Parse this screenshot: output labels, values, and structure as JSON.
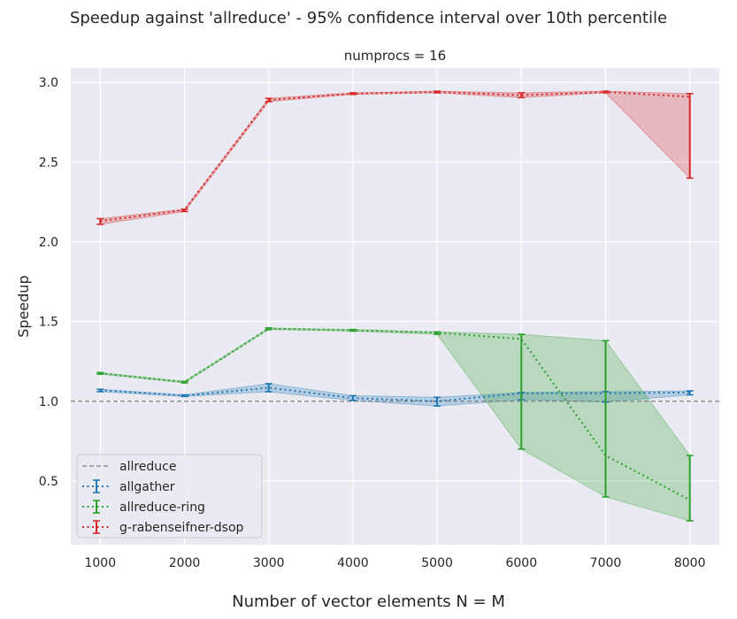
{
  "figure_title": "Speedup against 'allreduce' - 95% confidence interval over 10th percentile",
  "chart_data": {
    "type": "line",
    "title": "numprocs = 16",
    "xlabel": "Number of vector elements N = M",
    "ylabel": "Speedup",
    "x": [
      1000,
      2000,
      3000,
      4000,
      5000,
      6000,
      7000,
      8000
    ],
    "xlim": [
      650,
      8350
    ],
    "ylim": [
      0.1,
      3.09
    ],
    "xticks": [
      "1000",
      "2000",
      "3000",
      "4000",
      "5000",
      "6000",
      "7000",
      "8000"
    ],
    "yticks": [
      "0.5",
      "1.0",
      "1.5",
      "2.0",
      "2.5",
      "3.0"
    ],
    "ytick_values": [
      0.5,
      1.0,
      1.5,
      2.0,
      2.5,
      3.0
    ],
    "grid": true,
    "legend_position": "lower-left",
    "baseline": {
      "name": "allreduce",
      "value": 1.0,
      "color": "#7f7f7f"
    },
    "series": [
      {
        "name": "allgather",
        "color": "#1f77b4",
        "values": [
          1.07,
          1.035,
          1.085,
          1.02,
          1.0,
          1.05,
          1.05,
          1.055
        ],
        "lower": [
          1.06,
          1.03,
          1.06,
          1.005,
          0.97,
          1.01,
          0.995,
          1.04
        ],
        "upper": [
          1.075,
          1.04,
          1.11,
          1.035,
          1.025,
          1.055,
          1.06,
          1.065
        ]
      },
      {
        "name": "allreduce-ring",
        "color": "#2ca02c",
        "values": [
          1.175,
          1.12,
          1.455,
          1.445,
          1.43,
          1.39,
          0.66,
          0.38
        ],
        "lower": [
          1.17,
          1.115,
          1.45,
          1.44,
          1.42,
          0.7,
          0.4,
          0.25
        ],
        "upper": [
          1.18,
          1.125,
          1.46,
          1.45,
          1.435,
          1.42,
          1.38,
          0.66
        ]
      },
      {
        "name": "g-rabenseifner-dsop",
        "color": "#d62728",
        "values": [
          2.13,
          2.2,
          2.89,
          2.93,
          2.94,
          2.92,
          2.94,
          2.91
        ],
        "lower": [
          2.11,
          2.19,
          2.88,
          2.925,
          2.935,
          2.905,
          2.935,
          2.4
        ],
        "upper": [
          2.145,
          2.205,
          2.9,
          2.935,
          2.945,
          2.935,
          2.945,
          2.93
        ]
      }
    ]
  }
}
